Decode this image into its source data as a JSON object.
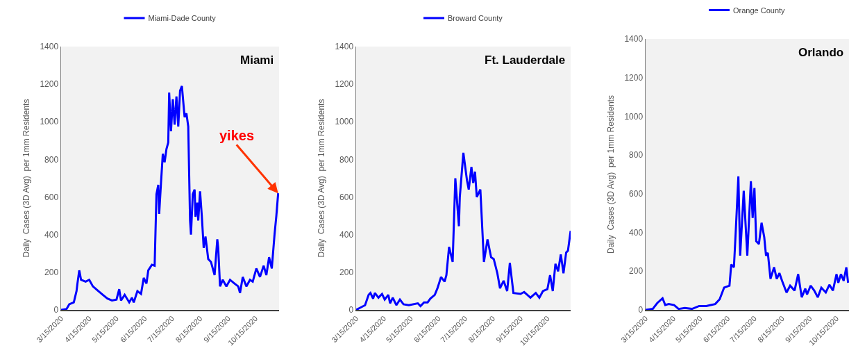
{
  "chart_data": [
    {
      "type": "line",
      "title": "Miami",
      "ylabel": "Daily  Cases (3D Avg)  per 1mm Residents",
      "legend": "top",
      "grid": false,
      "xlim": [
        "2020-03-15",
        "2020-11-10"
      ],
      "xticks": [
        {
          "value": "2020-03-15",
          "label": "3/15/2020"
        },
        {
          "value": "2020-04-15",
          "label": "4/15/2020"
        },
        {
          "value": "2020-05-15",
          "label": "5/15/2020"
        },
        {
          "value": "2020-06-15",
          "label": "6/15/2020"
        },
        {
          "value": "2020-07-15",
          "label": "7/15/2020"
        },
        {
          "value": "2020-08-15",
          "label": "8/15/2020"
        },
        {
          "value": "2020-09-15",
          "label": "9/15/2020"
        },
        {
          "value": "2020-10-15",
          "label": "10/15/2020"
        }
      ],
      "ylim": [
        0,
        1400
      ],
      "yticks": [
        0,
        200,
        400,
        600,
        800,
        1000,
        1200,
        1400
      ],
      "annotations": [
        {
          "text": "yikes",
          "x": "2020-11-09",
          "y": 620
        }
      ],
      "series": [
        {
          "name": "Miami-Dade County",
          "color": "#0000ff",
          "x": [
            "2020-03-15",
            "2020-03-21",
            "2020-03-24",
            "2020-03-29",
            "2020-04-01",
            "2020-04-02",
            "2020-04-04",
            "2020-04-06",
            "2020-04-11",
            "2020-04-15",
            "2020-04-19",
            "2020-04-25",
            "2020-04-30",
            "2020-05-05",
            "2020-05-10",
            "2020-05-15",
            "2020-05-18",
            "2020-05-20",
            "2020-05-24",
            "2020-05-29",
            "2020-06-01",
            "2020-06-03",
            "2020-06-07",
            "2020-06-11",
            "2020-06-14",
            "2020-06-17",
            "2020-06-19",
            "2020-06-23",
            "2020-06-26",
            "2020-06-28",
            "2020-06-30",
            "2020-07-01",
            "2020-07-03",
            "2020-07-05",
            "2020-07-07",
            "2020-07-09",
            "2020-07-11",
            "2020-07-12",
            "2020-07-14",
            "2020-07-16",
            "2020-07-18",
            "2020-07-20",
            "2020-07-22",
            "2020-07-24",
            "2020-07-26",
            "2020-07-29",
            "2020-07-31",
            "2020-08-02",
            "2020-08-04",
            "2020-08-05",
            "2020-08-07",
            "2020-08-09",
            "2020-08-10",
            "2020-08-12",
            "2020-08-13",
            "2020-08-15",
            "2020-08-17",
            "2020-08-19",
            "2020-08-21",
            "2020-08-24",
            "2020-08-27",
            "2020-08-31",
            "2020-09-03",
            "2020-09-04",
            "2020-09-06",
            "2020-09-09",
            "2020-09-13",
            "2020-09-17",
            "2020-09-22",
            "2020-09-26",
            "2020-09-28",
            "2020-10-01",
            "2020-10-05",
            "2020-10-09",
            "2020-10-12",
            "2020-10-16",
            "2020-10-20",
            "2020-10-24",
            "2020-10-27",
            "2020-10-30",
            "2020-11-02",
            "2020-11-05",
            "2020-11-07",
            "2020-11-09"
          ],
          "values": [
            0,
            5,
            30,
            40,
            100,
            140,
            210,
            160,
            150,
            160,
            125,
            100,
            80,
            60,
            50,
            55,
            110,
            50,
            80,
            40,
            65,
            40,
            100,
            85,
            170,
            140,
            210,
            240,
            235,
            615,
            665,
            510,
            675,
            830,
            785,
            855,
            890,
            1155,
            950,
            1120,
            985,
            1135,
            975,
            1165,
            1190,
            1025,
            1045,
            975,
            475,
            400,
            615,
            640,
            495,
            570,
            475,
            630,
            495,
            330,
            390,
            270,
            255,
            185,
            375,
            330,
            125,
            160,
            125,
            160,
            140,
            125,
            90,
            175,
            125,
            160,
            150,
            220,
            175,
            235,
            185,
            280,
            220,
            400,
            500,
            620
          ]
        }
      ]
    },
    {
      "type": "line",
      "title": "Ft. Lauderdale",
      "ylabel": "Daily  Cases (3D Avg)  per 1mm Residents",
      "legend": "top",
      "grid": false,
      "xlim": [
        "2020-03-15",
        "2020-11-10"
      ],
      "xticks": [
        {
          "value": "2020-03-15",
          "label": "3/15/2020"
        },
        {
          "value": "2020-04-15",
          "label": "4/15/2020"
        },
        {
          "value": "2020-05-15",
          "label": "5/15/2020"
        },
        {
          "value": "2020-06-15",
          "label": "6/15/2020"
        },
        {
          "value": "2020-07-15",
          "label": "7/15/2020"
        },
        {
          "value": "2020-08-15",
          "label": "8/15/2020"
        },
        {
          "value": "2020-09-15",
          "label": "9/15/2020"
        },
        {
          "value": "2020-10-15",
          "label": "10/15/2020"
        }
      ],
      "ylim": [
        0,
        1400
      ],
      "yticks": [
        0,
        200,
        400,
        600,
        800,
        1000,
        1200,
        1400
      ],
      "series": [
        {
          "name": "Broward County",
          "color": "#0000ff",
          "x": [
            "2020-03-15",
            "2020-03-19",
            "2020-03-25",
            "2020-03-29",
            "2020-03-31",
            "2020-04-03",
            "2020-04-05",
            "2020-04-09",
            "2020-04-13",
            "2020-04-16",
            "2020-04-20",
            "2020-04-22",
            "2020-04-25",
            "2020-04-29",
            "2020-05-03",
            "2020-05-07",
            "2020-05-13",
            "2020-05-23",
            "2020-05-26",
            "2020-05-30",
            "2020-06-03",
            "2020-06-06",
            "2020-06-11",
            "2020-06-14",
            "2020-06-18",
            "2020-06-22",
            "2020-06-24",
            "2020-06-27",
            "2020-07-01",
            "2020-07-04",
            "2020-07-08",
            "2020-07-09",
            "2020-07-13",
            "2020-07-17",
            "2020-07-19",
            "2020-07-22",
            "2020-07-24",
            "2020-07-26",
            "2020-07-28",
            "2020-08-01",
            "2020-08-05",
            "2020-08-09",
            "2020-08-13",
            "2020-08-16",
            "2020-08-20",
            "2020-08-23",
            "2020-08-27",
            "2020-08-31",
            "2020-09-03",
            "2020-09-07",
            "2020-09-15",
            "2020-09-19",
            "2020-09-26",
            "2020-10-02",
            "2020-10-06",
            "2020-10-10",
            "2020-10-15",
            "2020-10-18",
            "2020-10-21",
            "2020-10-24",
            "2020-10-27",
            "2020-10-30",
            "2020-11-02",
            "2020-11-05",
            "2020-11-07",
            "2020-11-10"
          ],
          "values": [
            0,
            10,
            25,
            80,
            90,
            60,
            90,
            65,
            85,
            55,
            80,
            35,
            65,
            25,
            55,
            30,
            25,
            35,
            20,
            40,
            40,
            60,
            80,
            115,
            175,
            150,
            185,
            335,
            255,
            700,
            445,
            600,
            835,
            690,
            640,
            760,
            675,
            735,
            600,
            640,
            255,
            375,
            280,
            270,
            195,
            115,
            155,
            100,
            250,
            90,
            85,
            95,
            65,
            90,
            65,
            100,
            110,
            185,
            100,
            245,
            205,
            295,
            195,
            305,
            315,
            420
          ]
        }
      ]
    },
    {
      "type": "line",
      "title": "Orlando",
      "ylabel": "Daily  Cases (3D Avg)  per 1mm Residents",
      "legend": "top",
      "grid": false,
      "xlim": [
        "2020-03-15",
        "2020-10-29"
      ],
      "xticks": [
        {
          "value": "2020-03-15",
          "label": "3/15/2020"
        },
        {
          "value": "2020-04-15",
          "label": "4/15/2020"
        },
        {
          "value": "2020-05-15",
          "label": "5/15/2020"
        },
        {
          "value": "2020-06-15",
          "label": "6/15/2020"
        },
        {
          "value": "2020-07-15",
          "label": "7/15/2020"
        },
        {
          "value": "2020-08-15",
          "label": "8/15/2020"
        },
        {
          "value": "2020-09-15",
          "label": "9/15/2020"
        },
        {
          "value": "2020-10-15",
          "label": "10/15/2020"
        }
      ],
      "ylim": [
        0,
        1400
      ],
      "yticks": [
        0,
        200,
        400,
        600,
        800,
        1000,
        1200,
        1400
      ],
      "series": [
        {
          "name": "Orange County",
          "color": "#0000ff",
          "x": [
            "2020-03-15",
            "2020-03-23",
            "2020-03-28",
            "2020-04-03",
            "2020-04-06",
            "2020-04-10",
            "2020-04-16",
            "2020-04-21",
            "2020-04-28",
            "2020-05-06",
            "2020-05-14",
            "2020-05-22",
            "2020-05-27",
            "2020-06-01",
            "2020-06-06",
            "2020-06-11",
            "2020-06-17",
            "2020-06-19",
            "2020-06-22",
            "2020-06-24",
            "2020-06-27",
            "2020-06-29",
            "2020-07-03",
            "2020-07-07",
            "2020-07-11",
            "2020-07-13",
            "2020-07-15",
            "2020-07-17",
            "2020-07-20",
            "2020-07-23",
            "2020-07-26",
            "2020-07-28",
            "2020-07-30",
            "2020-08-02",
            "2020-08-06",
            "2020-08-09",
            "2020-08-12",
            "2020-08-15",
            "2020-08-20",
            "2020-08-24",
            "2020-08-29",
            "2020-09-02",
            "2020-09-06",
            "2020-09-10",
            "2020-09-12",
            "2020-09-16",
            "2020-09-20",
            "2020-09-24",
            "2020-09-28",
            "2020-10-03",
            "2020-10-07",
            "2020-10-11",
            "2020-10-15",
            "2020-10-17",
            "2020-10-20",
            "2020-10-23",
            "2020-10-26",
            "2020-10-28"
          ],
          "values": [
            0,
            5,
            35,
            60,
            25,
            30,
            25,
            5,
            10,
            5,
            20,
            20,
            25,
            30,
            55,
            115,
            125,
            235,
            220,
            400,
            690,
            280,
            615,
            280,
            665,
            475,
            630,
            355,
            340,
            450,
            375,
            280,
            295,
            160,
            220,
            160,
            190,
            150,
            90,
            125,
            100,
            185,
            65,
            110,
            80,
            125,
            100,
            65,
            115,
            90,
            130,
            100,
            185,
            140,
            185,
            150,
            220,
            140
          ]
        }
      ]
    }
  ]
}
